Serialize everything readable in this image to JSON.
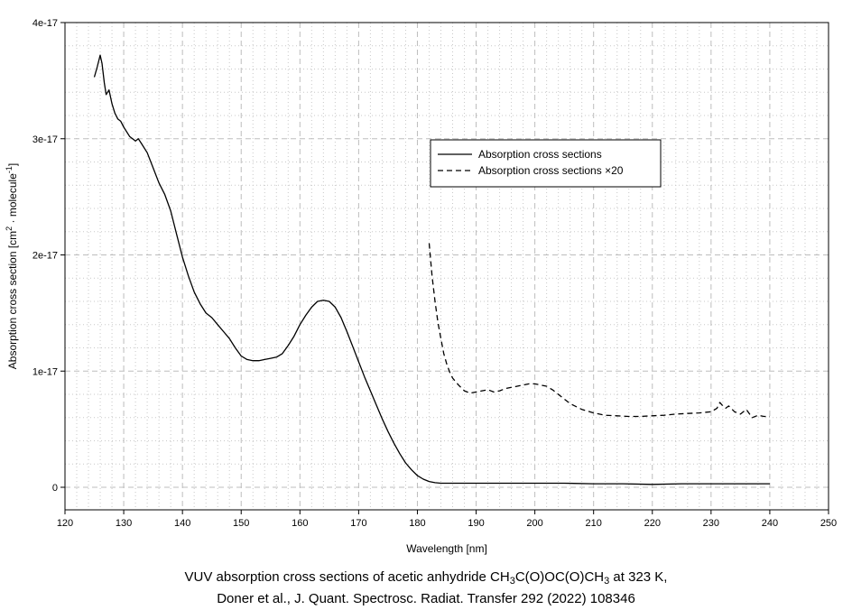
{
  "chart_data": {
    "type": "line",
    "xlabel": "Wavelength [nm]",
    "ylabel": {
      "base": "Absorption cross section [cm",
      "sup1": "2",
      "mid": " · molecule",
      "sup2": "-1",
      "end": "]"
    },
    "xlim": [
      120,
      250
    ],
    "ylim": [
      0,
      4e-17
    ],
    "x_ticks": [
      120,
      130,
      140,
      150,
      160,
      170,
      180,
      190,
      200,
      210,
      220,
      230,
      240,
      250
    ],
    "x_tick_labels": [
      "120",
      "130",
      "140",
      "150",
      "160",
      "170",
      "180",
      "190",
      "200",
      "210",
      "220",
      "230",
      "240",
      "250"
    ],
    "y_ticks": [
      0,
      1e-17,
      2e-17,
      3e-17,
      4e-17
    ],
    "y_tick_labels": [
      "0",
      "1e-17",
      "2e-17",
      "3e-17",
      "4e-17"
    ],
    "grid": true,
    "legend_position": "upper-right",
    "series": [
      {
        "name": "Absorption cross sections",
        "style": "solid",
        "x": [
          125,
          125.5,
          126,
          126.3,
          126.7,
          127,
          127.5,
          128,
          128.5,
          129,
          129.5,
          130,
          131,
          132,
          132.5,
          133,
          134,
          135,
          136,
          137,
          138,
          139,
          140,
          141,
          142,
          143,
          144,
          145,
          146,
          147,
          148,
          149,
          150,
          151,
          152,
          153,
          154,
          155,
          156,
          157,
          158,
          159,
          160,
          161,
          162,
          163,
          164,
          165,
          166,
          167,
          168,
          169,
          170,
          171,
          172,
          173,
          174,
          175,
          176,
          177,
          178,
          179,
          180,
          181,
          182,
          183,
          184,
          185,
          186,
          188,
          190,
          195,
          200,
          205,
          210,
          215,
          220,
          225,
          230,
          235,
          240
        ],
        "y": [
          3.53e-17,
          3.62e-17,
          3.72e-17,
          3.65e-17,
          3.48e-17,
          3.38e-17,
          3.42e-17,
          3.3e-17,
          3.22e-17,
          3.17e-17,
          3.15e-17,
          3.1e-17,
          3.02e-17,
          2.98e-17,
          3e-17,
          2.96e-17,
          2.88e-17,
          2.75e-17,
          2.62e-17,
          2.52e-17,
          2.38e-17,
          2.18e-17,
          1.98e-17,
          1.82e-17,
          1.68e-17,
          1.58e-17,
          1.5e-17,
          1.46e-17,
          1.4e-17,
          1.34e-17,
          1.28e-17,
          1.2e-17,
          1.13e-17,
          1.1e-17,
          1.09e-17,
          1.09e-17,
          1.1e-17,
          1.11e-17,
          1.12e-17,
          1.15e-17,
          1.22e-17,
          1.3e-17,
          1.4e-17,
          1.48e-17,
          1.55e-17,
          1.6e-17,
          1.61e-17,
          1.6e-17,
          1.55e-17,
          1.46e-17,
          1.34e-17,
          1.21e-17,
          1.08e-17,
          9.5e-18,
          8.3e-18,
          7.1e-18,
          5.9e-18,
          4.8e-18,
          3.8e-18,
          2.9e-18,
          2.1e-18,
          1.5e-18,
          1e-18,
          7e-19,
          5e-19,
          4e-19,
          3.5e-19,
          3.5e-19,
          3.5e-19,
          3.5e-19,
          3.5e-19,
          3.5e-19,
          3.5e-19,
          3.5e-19,
          3e-19,
          3e-19,
          2.5e-19,
          3e-19,
          3e-19,
          3e-19,
          3e-19
        ]
      },
      {
        "name": "Absorption cross sections ×20",
        "style": "dashed",
        "x": [
          182,
          182.5,
          183,
          183.5,
          184,
          184.5,
          185,
          185.5,
          186,
          187,
          188,
          189,
          190,
          191,
          192,
          193,
          194,
          195,
          196,
          197,
          198,
          199,
          200,
          201,
          202,
          203,
          204,
          205,
          206,
          208,
          210,
          212,
          214,
          216,
          218,
          220,
          222,
          224,
          226,
          228,
          230,
          231,
          231.5,
          232,
          232.5,
          233,
          234,
          235,
          236,
          237,
          238,
          239,
          240
        ],
        "y": [
          2.1e-17,
          1.82e-17,
          1.6e-17,
          1.42e-17,
          1.28e-17,
          1.15e-17,
          1.06e-17,
          9.9e-18,
          9.4e-18,
          8.8e-18,
          8.3e-18,
          8.1e-18,
          8.2e-18,
          8.3e-18,
          8.4e-18,
          8.2e-18,
          8.3e-18,
          8.5e-18,
          8.6e-18,
          8.7e-18,
          8.8e-18,
          8.9e-18,
          8.9e-18,
          8.8e-18,
          8.7e-18,
          8.4e-18,
          8e-18,
          7.6e-18,
          7.2e-18,
          6.7e-18,
          6.4e-18,
          6.2e-18,
          6.15e-18,
          6.1e-18,
          6.1e-18,
          6.15e-18,
          6.2e-18,
          6.3e-18,
          6.35e-18,
          6.4e-18,
          6.5e-18,
          6.8e-18,
          7.3e-18,
          7e-18,
          6.8e-18,
          7e-18,
          6.5e-18,
          6.3e-18,
          6.7e-18,
          6e-18,
          6.2e-18,
          6.1e-18,
          6.1e-18
        ]
      }
    ]
  },
  "caption": {
    "line1_prefix": "VUV absorption cross sections of acetic anhydride CH",
    "line1_sub1": "3",
    "line1_mid": "C(O)OC(O)CH",
    "line1_sub2": "3",
    "line1_suffix": " at 323 K,",
    "line2": "Doner et al., J. Quant. Spectrosc. Radiat. Transfer 292 (2022) 108346"
  }
}
